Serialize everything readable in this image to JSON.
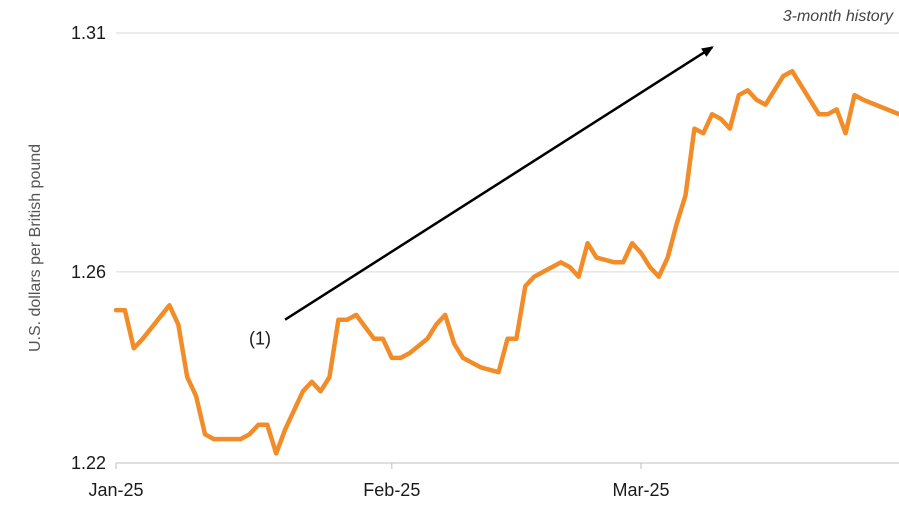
{
  "chart_data": {
    "type": "line",
    "subtitle": "3-month history",
    "ylabel": "U.S. dollars per British pound",
    "xlabel": "",
    "ylim": [
      1.22,
      1.31
    ],
    "xlim": [
      0,
      88
    ],
    "yticks": [
      {
        "value": 1.22,
        "label": "1.22"
      },
      {
        "value": 1.26,
        "label": "1.26"
      },
      {
        "value": 1.31,
        "label": "1.31"
      }
    ],
    "xticks": [
      {
        "value": 0,
        "label": "Jan-25"
      },
      {
        "value": 31,
        "label": "Feb-25"
      },
      {
        "value": 59,
        "label": "Mar-25"
      }
    ],
    "grid": "horizontal",
    "colors": {
      "line": "#F28C28",
      "grid": "#d9d9d9",
      "axis": "#bfbfbf",
      "arrow": "#000000"
    },
    "series": [
      {
        "x": [
          0,
          1,
          2,
          3,
          6,
          7,
          8,
          9,
          10,
          11,
          14,
          15,
          16,
          17,
          18,
          19,
          20,
          21,
          22,
          23,
          24,
          25,
          26,
          27,
          29,
          30,
          31,
          32,
          33,
          35,
          36,
          37,
          38,
          39,
          40,
          41,
          43,
          44,
          45,
          46,
          47,
          48,
          49,
          50,
          51,
          52,
          53,
          54,
          56,
          57,
          58,
          59,
          60,
          61,
          62,
          63,
          64,
          65,
          66,
          67,
          68,
          69,
          70,
          71,
          72,
          73,
          74,
          75,
          76,
          79,
          80,
          81,
          82,
          83,
          84,
          88
        ],
        "values": [
          1.252,
          1.252,
          1.244,
          1.246,
          1.253,
          1.249,
          1.238,
          1.234,
          1.226,
          1.225,
          1.225,
          1.226,
          1.228,
          1.228,
          1.222,
          1.227,
          1.231,
          1.235,
          1.237,
          1.235,
          1.238,
          1.25,
          1.25,
          1.251,
          1.246,
          1.246,
          1.242,
          1.242,
          1.243,
          1.246,
          1.249,
          1.251,
          1.245,
          1.242,
          1.241,
          1.24,
          1.239,
          1.246,
          1.246,
          1.257,
          1.259,
          1.26,
          1.261,
          1.262,
          1.261,
          1.259,
          1.266,
          1.263,
          1.262,
          1.262,
          1.266,
          1.264,
          1.261,
          1.259,
          1.263,
          1.27,
          1.276,
          1.29,
          1.289,
          1.293,
          1.292,
          1.29,
          1.297,
          1.298,
          1.296,
          1.295,
          1.298,
          1.301,
          1.302,
          1.293,
          1.293,
          1.294,
          1.289,
          1.297,
          1.296,
          1.293
        ]
      }
    ],
    "annotations": [
      {
        "text": "(1)",
        "arrow_from": {
          "x": 19,
          "y": 1.25
        },
        "arrow_to": {
          "x": 67,
          "y": 1.307
        }
      }
    ]
  }
}
